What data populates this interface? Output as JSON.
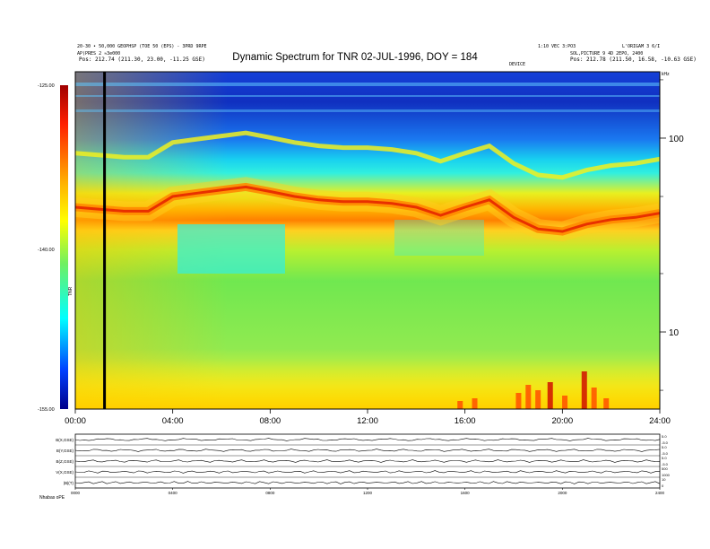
{
  "header": {
    "left_line1": "20-30 • 50,000 GEOPHSP (TOE 50 (EPS) - 3PRD 9RPE",
    "left_line2": "AP(PRES 2 ≈3e000",
    "left_line3": "Pos:   212.74 (211.30, 23.00, -11.25 GSE)",
    "right_line1": "1:10 VEC 3:PO3",
    "right_line2": "L'ORIGAM 3 6/I",
    "right_line3": "SOL,PICTURE 9 4D 2EPO, 2400",
    "right_line4": "Pos:   212.78 (211.50, 16.58, -10.63 GSE)",
    "center_small": "DEVICE",
    "title": "Dynamic Spectrum for TNR 02-JUL-1996, DOY = 184"
  },
  "colorbar": {
    "label": "TNR",
    "ticks": [
      "-125.00",
      "-140.00",
      "-155.00"
    ]
  },
  "bottom_labels": {
    "footer_left": "Nhabas    oPE"
  },
  "chart_data": [
    {
      "type": "heatmap",
      "title": "Dynamic Spectrum for TNR 02-JUL-1996, DOY = 184",
      "x_ticks": [
        "00:00",
        "04:00",
        "08:00",
        "12:00",
        "16:00",
        "20:00",
        "24:00"
      ],
      "x_range_hours": [
        0,
        24
      ],
      "y_scale": "log",
      "y_units": "kHz",
      "y_ticks": [
        "100",
        "10"
      ],
      "y_range": [
        4,
        220
      ],
      "color_scale": "jet",
      "color_range": [
        -155,
        -125
      ],
      "features": {
        "vertical_black_line_hour": 1.2,
        "plasma_line_hours": [
          0,
          1,
          2,
          3,
          4,
          5,
          6,
          7,
          8,
          9,
          10,
          11,
          12,
          13,
          14,
          15,
          16,
          17,
          18,
          19,
          20,
          21,
          22,
          23,
          24
        ],
        "plasma_line_khz": [
          44,
          43,
          42,
          42,
          50,
          52,
          54,
          56,
          53,
          50,
          48,
          47,
          47,
          46,
          44,
          40,
          44,
          48,
          39,
          34,
          33,
          36,
          38,
          39,
          41
        ]
      }
    },
    {
      "type": "line",
      "panel": "key-parameter strips",
      "series": [
        {
          "name": "B(X,GSE)"
        },
        {
          "name": "B(Y,GSE)"
        },
        {
          "name": "B(Z,GSE)"
        },
        {
          "name": "V(X,GSE)"
        },
        {
          "name": "|B|(T)"
        }
      ],
      "right_ticks": [
        [
          "5.0",
          "-5.0"
        ],
        [
          "5.0",
          "-5.0"
        ],
        [
          "5.0",
          "-5.0"
        ],
        [
          "500",
          "1000"
        ],
        [
          "10",
          "0"
        ]
      ],
      "x_ticks": [
        "0000",
        "0400",
        "0800",
        "1200",
        "1600",
        "2000",
        "2400"
      ]
    }
  ]
}
